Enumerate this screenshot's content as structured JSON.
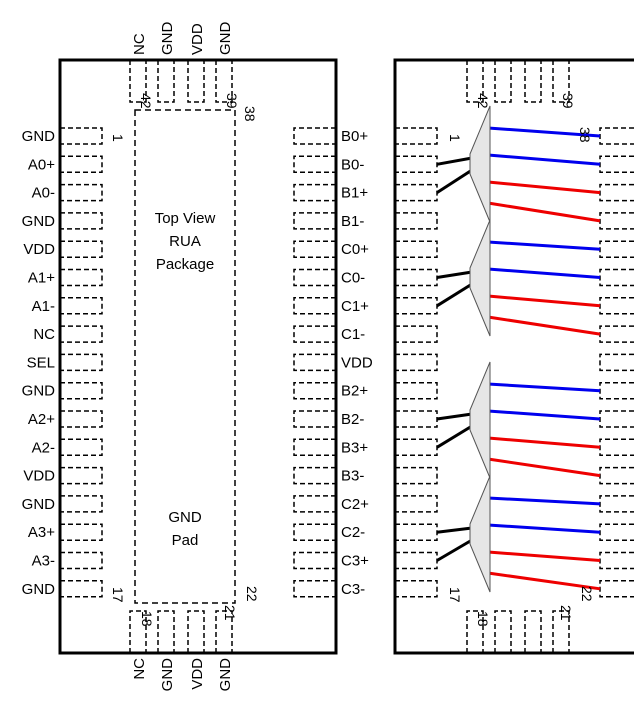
{
  "left_pins": [
    "GND",
    "A0+",
    "A0-",
    "GND",
    "VDD",
    "A1+",
    "A1-",
    "NC",
    "SEL",
    "GND",
    "A2+",
    "A2-",
    "VDD",
    "GND",
    "A3+",
    "A3-",
    "GND"
  ],
  "right_pins": [
    "B0+",
    "B0-",
    "B1+",
    "B1-",
    "C0+",
    "C0-",
    "C1+",
    "C1-",
    "VDD",
    "B2+",
    "B2-",
    "B3+",
    "B3-",
    "C2+",
    "C2-",
    "C3+",
    "C3-"
  ],
  "top_pins": [
    "NC",
    "GND",
    "VDD",
    "GND"
  ],
  "bottom_pins": [
    "NC",
    "GND",
    "VDD",
    "GND"
  ],
  "pin_numbers": {
    "p1": "1",
    "p17": "17",
    "p18": "18",
    "p21": "21",
    "p22": "22",
    "p38": "38",
    "p39": "39",
    "p42": "42"
  },
  "center_label": [
    "Top View",
    "RUA",
    "Package"
  ],
  "pad_label": [
    "GND",
    "Pad"
  ],
  "colors": {
    "outline": "#000000",
    "blue": "#0000ee",
    "red": "#ee0000",
    "mux_fill": "#e6e6e6"
  }
}
